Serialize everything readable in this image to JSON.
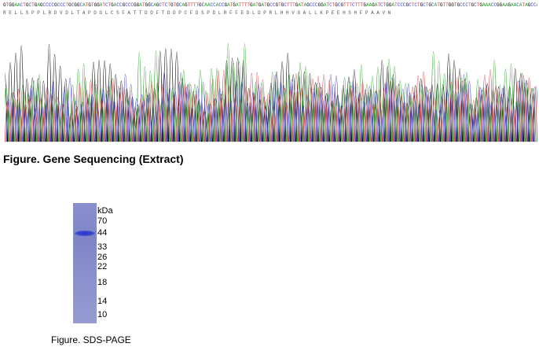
{
  "sequencing": {
    "dna": "GTGGAACTGCTGAGCCCCGCCCTGCGGCATGTGGATCTGACCGCCCGGATGGCAGCTCTGTGCAGTTTTGCAACCACCGATGATTTTGATGATGCCGTGCTTTGATAGCCCGGATCTGCGTTTCTTTGAAGATCTGGATCCCGCTCTGCTGCATGTTGGTGCCCTGCTGAAACCGGAAGAACATAGCCATTTTCCGGCGCAGTGA",
    "aa": "R E L L S P P L R D V D L T A P D G L C S F A T T D D F T D D P C F D S P D L R F F E D L D P R L H H V G A L L K P E E H S H F P A A V N",
    "title": "Figure. Gene Sequencing (Extract)"
  },
  "chart_data": {
    "type": "line",
    "title": "",
    "xlabel": "",
    "ylabel": "",
    "series": [
      {
        "color": "#000000",
        "values": [
          0.88,
          0.55,
          0.95,
          0.4,
          0.7,
          0.65,
          0.5,
          0.8,
          0.6,
          0.45,
          0.72,
          0.5,
          0.85,
          0.6,
          0.55,
          0.7,
          0.45,
          0.75,
          0.62,
          0.5,
          0.8,
          0.58,
          0.48,
          0.66
        ]
      },
      {
        "color": "#2ea82e",
        "values": [
          0.5,
          0.6,
          0.45,
          0.7,
          0.55,
          0.4,
          0.78,
          0.5,
          0.62,
          0.68,
          0.85,
          0.55,
          0.6,
          0.72,
          0.5,
          0.58,
          0.66,
          0.74,
          0.5,
          0.8,
          0.62,
          0.55,
          0.7,
          0.6
        ]
      },
      {
        "color": "#d23c3c",
        "values": [
          0.45,
          0.5,
          0.4,
          0.55,
          0.6,
          0.48,
          0.52,
          0.58,
          0.5,
          0.62,
          0.55,
          0.6,
          0.47,
          0.65,
          0.58,
          0.5,
          0.56,
          0.52,
          0.6,
          0.48,
          0.55,
          0.62,
          0.5,
          0.57
        ]
      },
      {
        "color": "#3c3cd2",
        "values": [
          0.4,
          0.48,
          0.55,
          0.45,
          0.5,
          0.58,
          0.42,
          0.6,
          0.52,
          0.46,
          0.55,
          0.5,
          0.58,
          0.45,
          0.6,
          0.52,
          0.48,
          0.56,
          0.5,
          0.45,
          0.58,
          0.5,
          0.46,
          0.54
        ]
      }
    ]
  },
  "gel": {
    "unit": "kDa",
    "ladder": [
      "70",
      "44",
      "33",
      "26",
      "22",
      "18",
      "14",
      "10"
    ],
    "band_color": "#2433c8",
    "title": "Figure. SDS-PAGE"
  }
}
